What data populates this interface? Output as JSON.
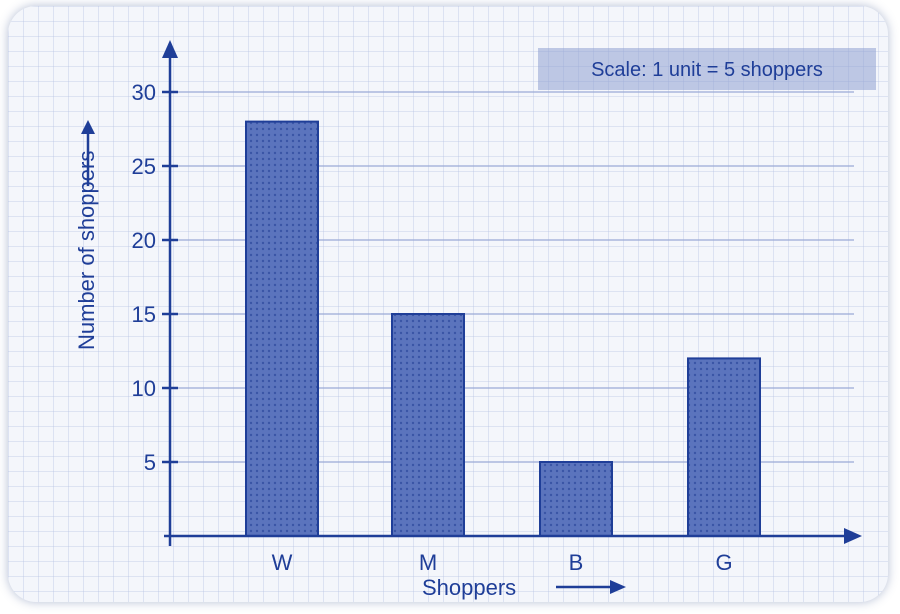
{
  "chart_data": {
    "type": "bar",
    "title": "",
    "xlabel": "Shoppers",
    "ylabel": "Number of shoppers",
    "categories": [
      "W",
      "M",
      "B",
      "G"
    ],
    "values": [
      28,
      15,
      5,
      12
    ],
    "ylim": [
      0,
      30
    ],
    "yticks": [
      "5",
      "10",
      "15",
      "20",
      "25",
      "30"
    ],
    "grid": true,
    "scale_note": "Scale: 1 unit = 5 shoppers",
    "colors": {
      "ink": "#1f3e98",
      "bar_fill": "#5b74bd",
      "grid": "#9aaad6"
    }
  }
}
